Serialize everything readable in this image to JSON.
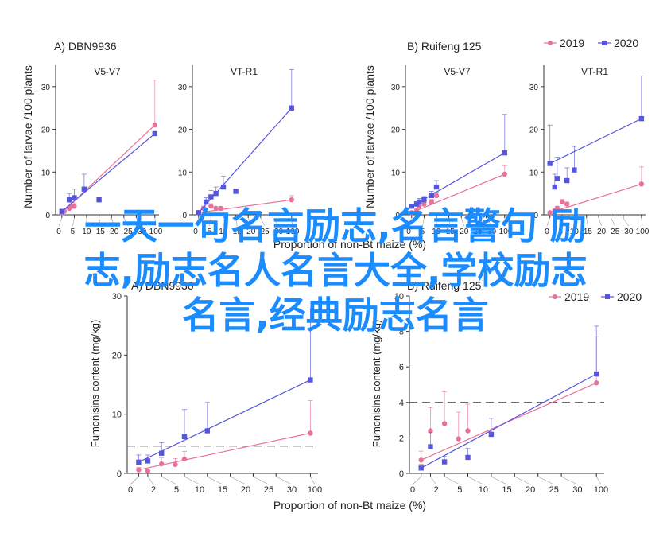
{
  "legend": {
    "series": [
      {
        "name": "2019",
        "color": "#e8719a",
        "marker": "circle"
      },
      {
        "name": "2020",
        "color": "#5555dd",
        "marker": "square"
      }
    ]
  },
  "overlay_text": [
    "一天一句名言励志,名言警句 励",
    "志,励志名人名言大全,学校励志",
    "名言,经典励志名言"
  ],
  "top_ylabel": "Number of larvae /100 plants",
  "bottom_ylabel": "Fumonisins content (mg/kg)",
  "xlabel": "Proportion of non-Bt maize (%)",
  "chart_data": [
    {
      "panel": "A) DBN9936",
      "type": "line",
      "subtitle": "V5-V7",
      "xticks": [
        0,
        5,
        10,
        15,
        20,
        25,
        30,
        100
      ],
      "yticks": [
        0,
        10,
        20,
        30
      ],
      "ylim": [
        0,
        35
      ],
      "series": [
        {
          "name": "2019",
          "points": [
            [
              0,
              0.5
            ],
            [
              1,
              0.8
            ],
            [
              3,
              1.5
            ],
            [
              4,
              2
            ],
            [
              5,
              2
            ],
            [
              100,
              21
            ]
          ],
          "err": [
            0.3,
            0.5,
            0.6,
            0.8,
            0.8,
            10.5
          ]
        },
        {
          "name": "2020",
          "points": [
            [
              0,
              0.8
            ],
            [
              3,
              3.5
            ],
            [
              5,
              4
            ],
            [
              9,
              6
            ],
            [
              15,
              3.5
            ],
            [
              100,
              19
            ]
          ],
          "err": [
            0.5,
            1.5,
            2,
            3.5,
            0,
            0
          ]
        }
      ]
    },
    {
      "panel": "A) DBN9936",
      "type": "line",
      "subtitle": "VT-R1",
      "xticks": [
        0,
        5,
        10,
        15,
        20,
        25,
        30,
        100
      ],
      "yticks": [
        0,
        10,
        20,
        30
      ],
      "ylim": [
        0,
        35
      ],
      "series": [
        {
          "name": "2019",
          "points": [
            [
              0,
              0.5
            ],
            [
              2,
              1.5
            ],
            [
              5,
              2
            ],
            [
              7,
              1.5
            ],
            [
              9,
              1.5
            ],
            [
              100,
              3.5
            ]
          ],
          "err": [
            0.3,
            0.5,
            0.6,
            0.4,
            0.4,
            1
          ]
        },
        {
          "name": "2020",
          "points": [
            [
              0,
              0.5
            ],
            [
              3,
              3
            ],
            [
              5,
              4.2
            ],
            [
              7,
              5
            ],
            [
              10,
              6.5
            ],
            [
              15,
              5.5
            ],
            [
              100,
              25
            ]
          ],
          "err": [
            0.4,
            1,
            1.5,
            1.5,
            2.5,
            0,
            9
          ]
        }
      ]
    },
    {
      "panel": "B) Ruifeng 125",
      "type": "line",
      "subtitle": "V5-V7",
      "xticks": [
        0,
        5,
        10,
        15,
        20,
        25,
        30,
        100
      ],
      "yticks": [
        0,
        10,
        20,
        30
      ],
      "ylim": [
        0,
        35
      ],
      "series": [
        {
          "name": "2019",
          "points": [
            [
              0,
              0.5
            ],
            [
              2,
              1
            ],
            [
              3,
              2
            ],
            [
              5,
              2.5
            ],
            [
              8,
              3
            ],
            [
              10,
              4.5
            ],
            [
              100,
              9.5
            ]
          ],
          "err": [
            0.3,
            0.5,
            0.6,
            0.6,
            0.6,
            0.8,
            2
          ]
        },
        {
          "name": "2020",
          "points": [
            [
              0,
              2
            ],
            [
              2,
              2.5
            ],
            [
              3,
              3
            ],
            [
              5,
              3.5
            ],
            [
              8,
              4.5
            ],
            [
              10,
              6.5
            ],
            [
              100,
              14.5
            ]
          ],
          "err": [
            0.5,
            0.6,
            0.8,
            0.8,
            1,
            1.5,
            9
          ]
        }
      ]
    },
    {
      "panel": "B) Ruifeng 125",
      "type": "line",
      "subtitle": "VT-R1",
      "xticks": [
        0,
        5,
        10,
        15,
        20,
        25,
        30,
        100
      ],
      "yticks": [
        0,
        10,
        20,
        30
      ],
      "ylim": [
        0,
        35
      ],
      "series": [
        {
          "name": "2019",
          "points": [
            [
              0,
              0.5
            ],
            [
              2,
              1
            ],
            [
              3,
              1.5
            ],
            [
              5,
              3
            ],
            [
              7,
              2.5
            ],
            [
              100,
              7.2
            ]
          ],
          "err": [
            0.3,
            0.4,
            0.5,
            0.6,
            0.5,
            4
          ]
        },
        {
          "name": "2020",
          "points": [
            [
              0,
              12
            ],
            [
              2,
              6.5
            ],
            [
              3,
              8.5
            ],
            [
              7,
              8
            ],
            [
              10,
              10.5
            ],
            [
              100,
              22.5
            ]
          ],
          "err": [
            9,
            3,
            5,
            3,
            5.5,
            10
          ]
        }
      ]
    },
    {
      "panel": "A) DBN9936",
      "type": "line",
      "xticks": [
        0,
        2,
        5,
        10,
        15,
        20,
        25,
        30,
        100
      ],
      "yticks": [
        0,
        10,
        20,
        30
      ],
      "ylim": [
        0,
        30
      ],
      "threshold": 4.6,
      "series": [
        {
          "name": "2019",
          "points": [
            [
              0,
              0.6
            ],
            [
              2,
              0.4
            ],
            [
              5,
              1.6
            ],
            [
              8,
              1.5
            ],
            [
              10,
              2.4
            ],
            [
              100,
              6.8
            ]
          ],
          "err": [
            0.4,
            0.3,
            1,
            1,
            1.3,
            5.5
          ]
        },
        {
          "name": "2020",
          "points": [
            [
              0,
              1.9
            ],
            [
              2,
              2.1
            ],
            [
              5,
              3.4
            ],
            [
              10,
              6.2
            ],
            [
              15,
              7.2
            ],
            [
              100,
              15.8
            ]
          ],
          "err": [
            1.2,
            1,
            1.8,
            4.6,
            4.8,
            12
          ]
        }
      ]
    },
    {
      "panel": "B) Ruifeng 125",
      "type": "line",
      "xticks": [
        0,
        2,
        5,
        10,
        15,
        20,
        25,
        30,
        100
      ],
      "yticks": [
        0,
        2,
        4,
        6,
        8,
        10
      ],
      "ylim": [
        0,
        10
      ],
      "threshold": 4,
      "series": [
        {
          "name": "2019",
          "points": [
            [
              0,
              0.75
            ],
            [
              2,
              2.4
            ],
            [
              5,
              2.8
            ],
            [
              8,
              1.95
            ],
            [
              10,
              2.4
            ],
            [
              100,
              5.1
            ]
          ],
          "err": [
            0.5,
            1.3,
            1.8,
            1.5,
            1.5,
            2.6
          ]
        },
        {
          "name": "2020",
          "points": [
            [
              0,
              0.3
            ],
            [
              2,
              1.5
            ],
            [
              5,
              0.65
            ],
            [
              10,
              0.9
            ],
            [
              15,
              2.2
            ],
            [
              100,
              5.6
            ]
          ],
          "err": [
            0.2,
            0.8,
            0.3,
            0.5,
            0.9,
            2.7
          ]
        }
      ]
    }
  ]
}
